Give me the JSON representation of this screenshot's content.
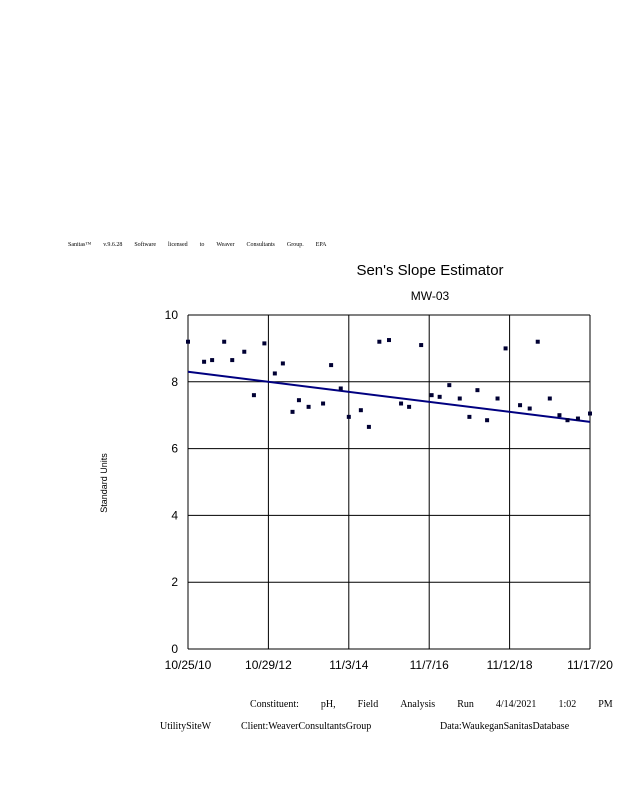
{
  "license_words": [
    "Sanitas™",
    "v.9.6.28",
    "Software",
    "licensed",
    "to",
    "Weaver",
    "Consultants",
    "Group.",
    "EPA"
  ],
  "footer": {
    "line1": [
      "Constituent:",
      "pH,",
      "Field",
      "Analysis",
      "Run",
      "4/14/2021",
      "1:02",
      "PM"
    ],
    "site": "UtilitySiteW",
    "client": "Client:WeaverConsultantsGroup",
    "data": "Data:WaukeganSanitasDatabase"
  },
  "chart_data": {
    "type": "scatter",
    "title": "Sen's Slope Estimator",
    "subtitle": "MW-03",
    "xlabel": "",
    "ylabel": "Standard Units",
    "ylim": [
      0,
      10
    ],
    "yticks": [
      "0",
      "2",
      "4",
      "6",
      "8",
      "10"
    ],
    "xticks": [
      "10/25/10",
      "10/29/12",
      "11/3/14",
      "11/7/16",
      "11/12/18",
      "11/17/20"
    ],
    "grid": true,
    "marker_color": "#000033",
    "trend_color": "#000080",
    "series": [
      {
        "points": [
          [
            0.0,
            9.2
          ],
          [
            0.2,
            8.6
          ],
          [
            0.3,
            8.65
          ],
          [
            0.45,
            9.2
          ],
          [
            0.55,
            8.65
          ],
          [
            0.7,
            8.9
          ],
          [
            0.82,
            7.6
          ],
          [
            0.95,
            9.15
          ],
          [
            1.08,
            8.25
          ],
          [
            1.18,
            8.55
          ],
          [
            1.3,
            7.1
          ],
          [
            1.38,
            7.45
          ],
          [
            1.5,
            7.25
          ],
          [
            1.68,
            7.35
          ],
          [
            1.78,
            8.5
          ],
          [
            1.9,
            7.8
          ],
          [
            2.0,
            6.95
          ],
          [
            2.15,
            7.15
          ],
          [
            2.25,
            6.65
          ],
          [
            2.38,
            9.2
          ],
          [
            2.5,
            9.25
          ],
          [
            2.65,
            7.35
          ],
          [
            2.75,
            7.25
          ],
          [
            2.9,
            9.1
          ],
          [
            3.03,
            7.6
          ],
          [
            3.13,
            7.55
          ],
          [
            3.25,
            7.9
          ],
          [
            3.38,
            7.5
          ],
          [
            3.5,
            6.95
          ],
          [
            3.6,
            7.75
          ],
          [
            3.72,
            6.85
          ],
          [
            3.85,
            7.5
          ],
          [
            3.95,
            9.0
          ],
          [
            4.13,
            7.3
          ],
          [
            4.25,
            7.2
          ],
          [
            4.35,
            9.2
          ],
          [
            4.5,
            7.5
          ],
          [
            4.62,
            7.0
          ],
          [
            4.72,
            6.85
          ],
          [
            4.85,
            6.9
          ],
          [
            5.0,
            7.05
          ]
        ]
      }
    ],
    "trend": {
      "start": 8.3,
      "end": 6.8
    }
  }
}
